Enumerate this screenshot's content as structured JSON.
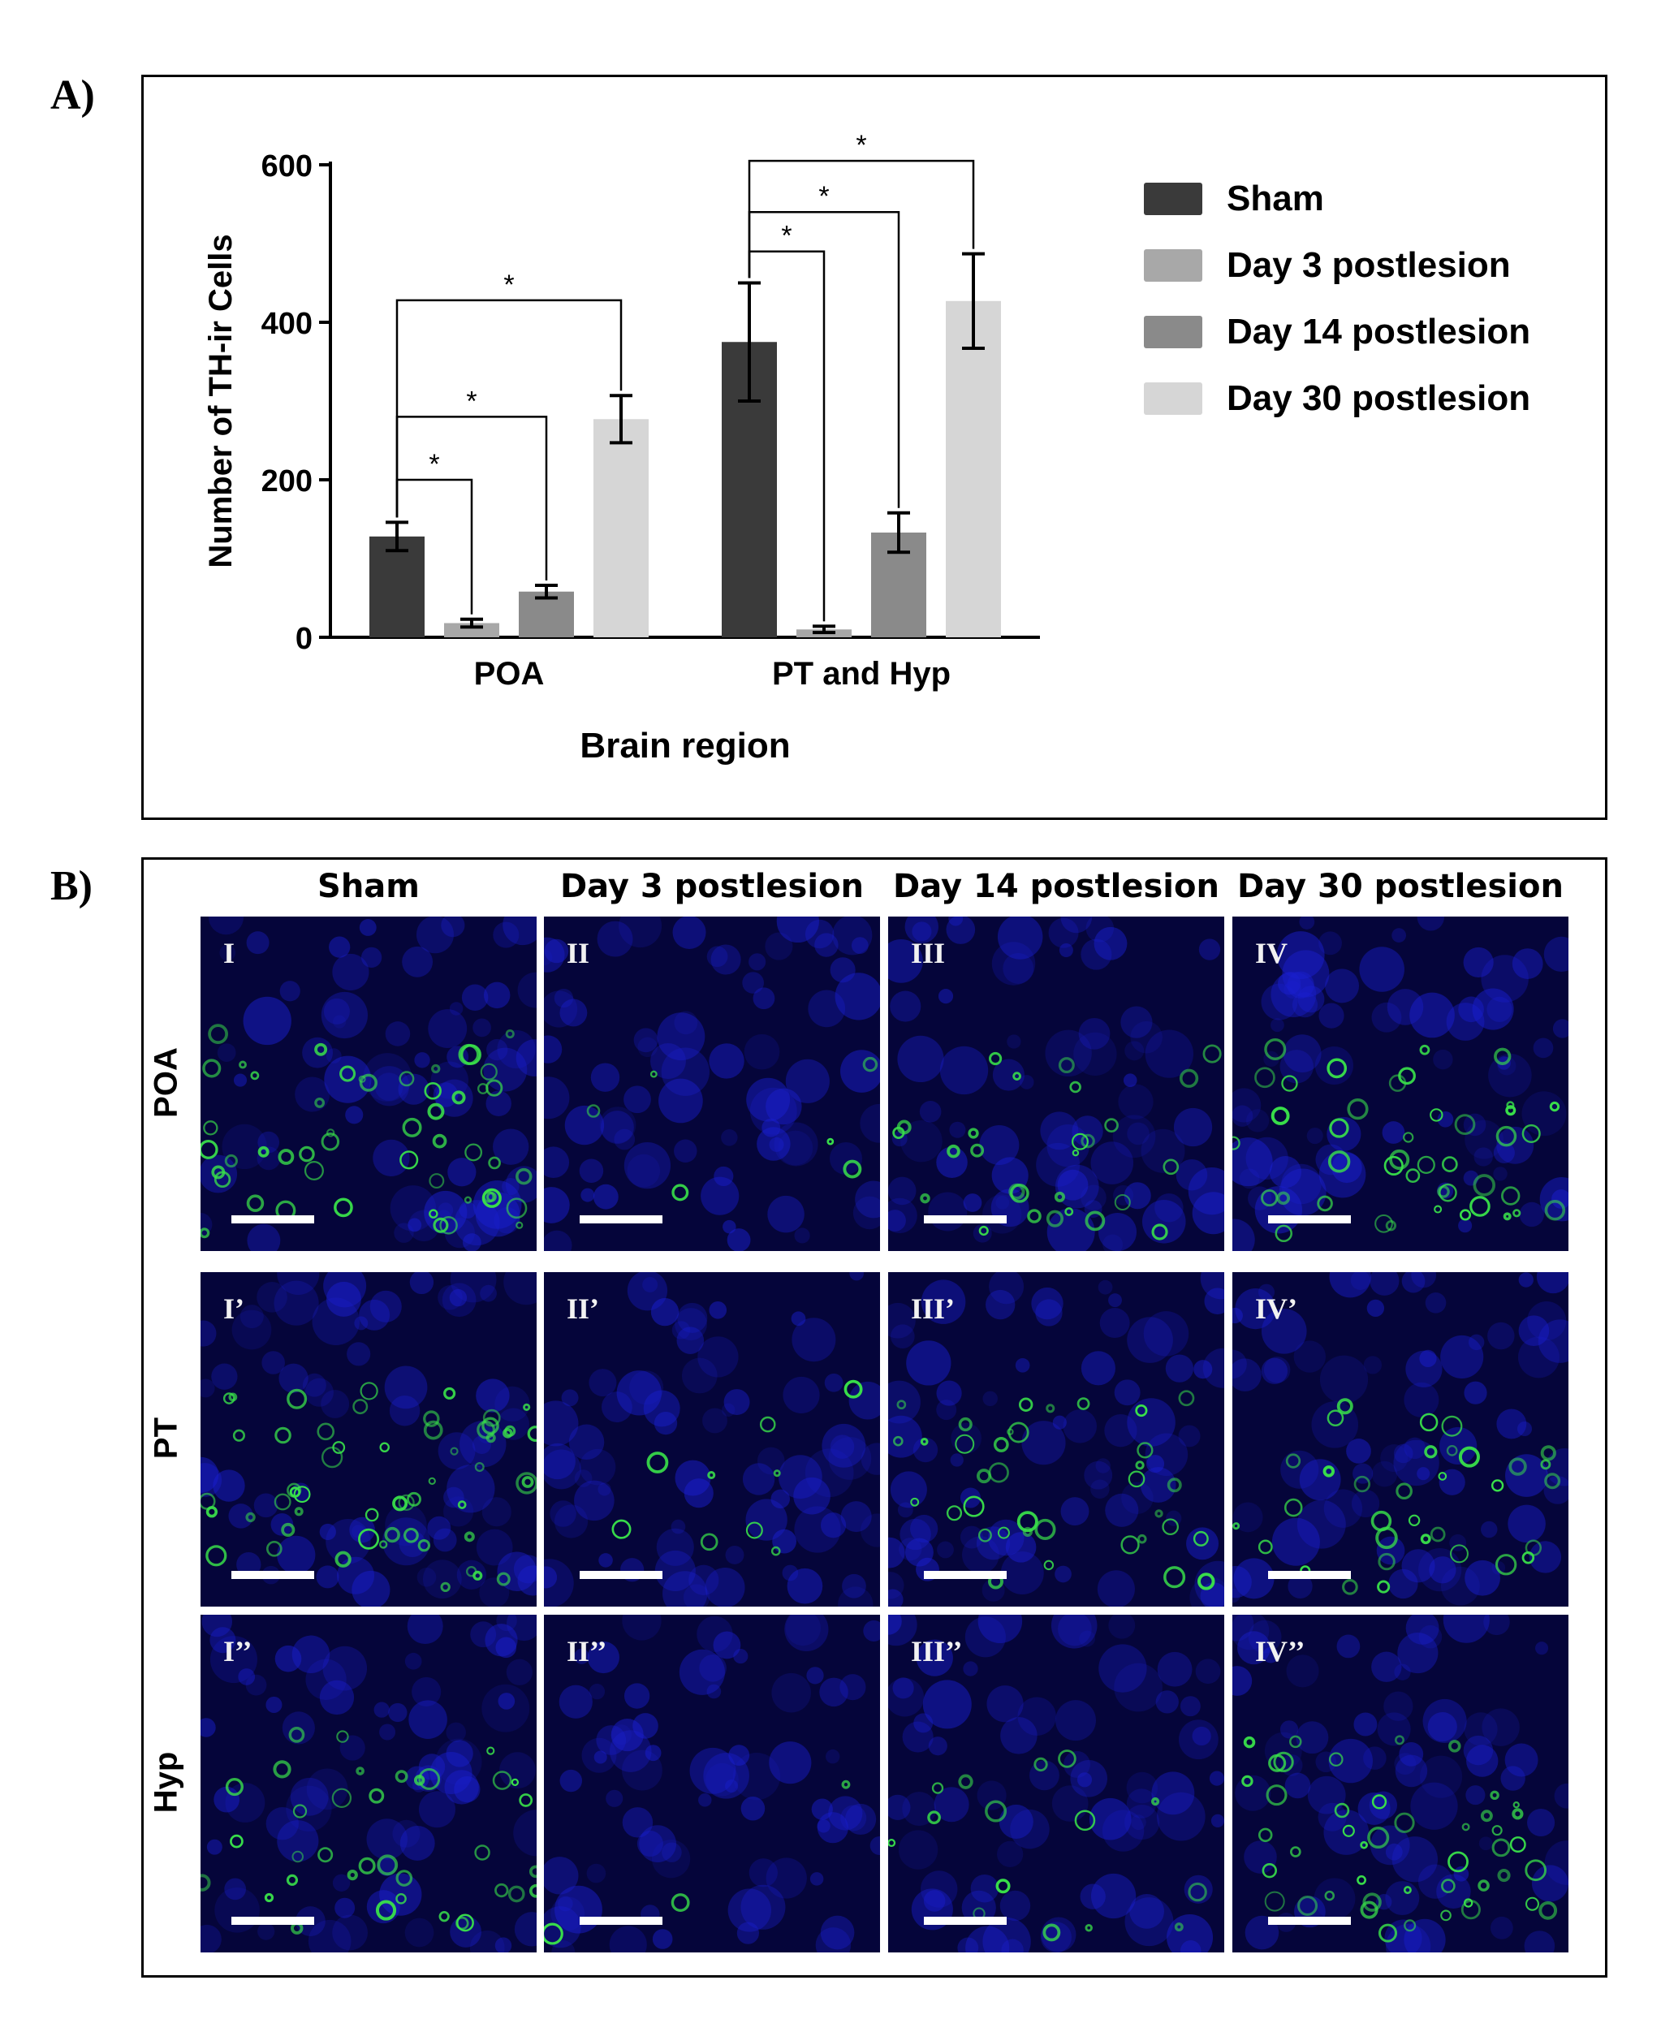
{
  "panel_a_label": "A)",
  "panel_b_label": "B)",
  "chart_data": {
    "type": "bar",
    "title": "",
    "xlabel": "Brain region",
    "ylabel": "Number of TH-ir Cells",
    "categories": [
      "POA",
      "PT and Hyp"
    ],
    "ylim": [
      0,
      600
    ],
    "yticks": [
      0,
      200,
      400,
      600
    ],
    "grid": false,
    "legend_position": "right",
    "series": [
      {
        "name": "Sham",
        "color": "#3a3a3a",
        "values": [
          128,
          375
        ],
        "errors": [
          18,
          75
        ]
      },
      {
        "name": "Day 3 postlesion",
        "color": "#a8a8a8",
        "values": [
          18,
          10
        ],
        "errors": [
          5,
          4
        ]
      },
      {
        "name": "Day 14 postlesion",
        "color": "#8a8a8a",
        "values": [
          58,
          133
        ],
        "errors": [
          8,
          25
        ]
      },
      {
        "name": "Day 30 postlesion",
        "color": "#d6d6d6",
        "values": [
          277,
          427
        ],
        "errors": [
          30,
          60
        ]
      }
    ],
    "significance": [
      {
        "group": 0,
        "from": 0,
        "to": 1,
        "y": 200,
        "label": "*"
      },
      {
        "group": 0,
        "from": 0,
        "to": 2,
        "y": 280,
        "label": "*"
      },
      {
        "group": 0,
        "from": 0,
        "to": 3,
        "y": 428,
        "label": "*"
      },
      {
        "group": 1,
        "from": 0,
        "to": 1,
        "y": 490,
        "label": "*"
      },
      {
        "group": 1,
        "from": 0,
        "to": 2,
        "y": 540,
        "label": "*"
      },
      {
        "group": 1,
        "from": 0,
        "to": 3,
        "y": 605,
        "label": "*"
      }
    ]
  },
  "micrographs": {
    "columns": [
      "Sham",
      "Day 3 postlesion",
      "Day 14 postlesion",
      "Day 30 postlesion"
    ],
    "rows": [
      "POA",
      "PT",
      "Hyp"
    ],
    "tags": [
      [
        "I",
        "II",
        "III",
        "IV"
      ],
      [
        "I’",
        "II’",
        "III’",
        "IV’"
      ],
      [
        "I’’",
        "II’’",
        "III’’",
        "IV’’"
      ]
    ],
    "signal": [
      [
        0.85,
        0.1,
        0.45,
        0.7
      ],
      [
        0.9,
        0.15,
        0.6,
        0.55
      ],
      [
        0.6,
        0.05,
        0.25,
        0.75
      ]
    ],
    "colors": {
      "background": "#05053a",
      "nuclei": "#1a1fd0",
      "th_signal": "#39e04a"
    }
  }
}
